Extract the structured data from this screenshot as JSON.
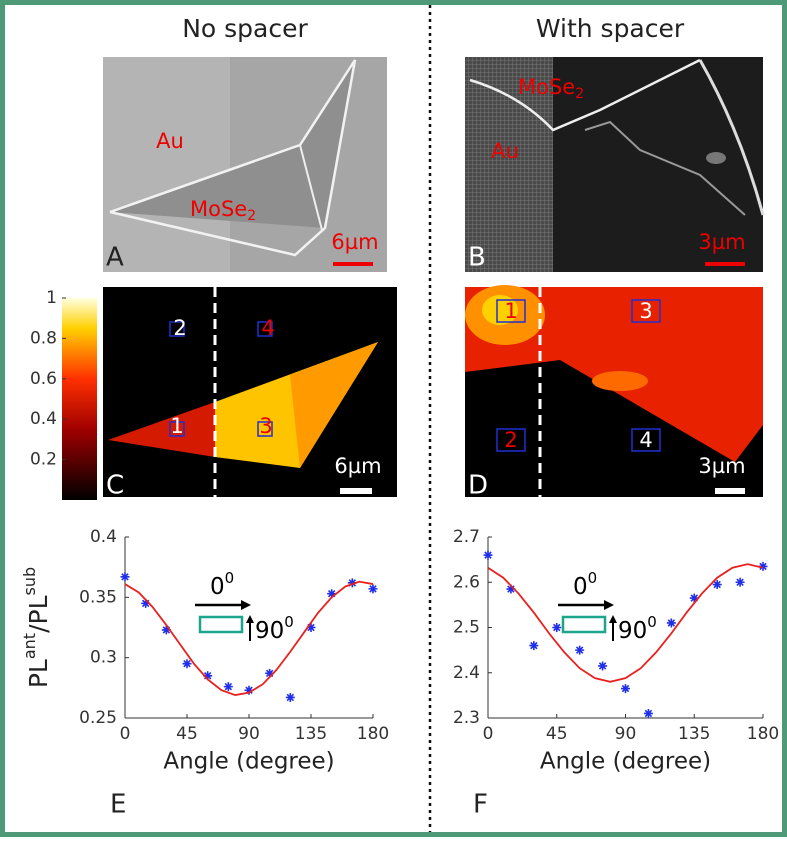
{
  "header": {
    "left": "No spacer",
    "right": "With spacer"
  },
  "images": [
    {
      "label": "A",
      "texts": [
        {
          "text": "Au"
        },
        {
          "text": "MoSe",
          "sub": "2"
        }
      ],
      "scale": "6µm"
    },
    {
      "label": "B",
      "texts": [
        {
          "text": "MoSe",
          "sub": "2"
        },
        {
          "text": "Au"
        }
      ],
      "scale": "3µm"
    }
  ],
  "heatmaps": [
    {
      "label": "C",
      "scale": "6µm",
      "regions": [
        "1",
        "2",
        "3",
        "4"
      ]
    },
    {
      "label": "D",
      "scale": "3µm",
      "regions": [
        "1",
        "2",
        "3",
        "4"
      ]
    }
  ],
  "colorbar": {
    "lim": [
      0,
      1
    ],
    "ticks": [
      0.2,
      0.4,
      0.6,
      0.8,
      1
    ]
  },
  "chart_data": [
    {
      "type": "scatter",
      "label": "E",
      "xlabel": "Angle (degree)",
      "ylabel": [
        "PL",
        "ant",
        "/PL",
        "sub"
      ],
      "arrows": {
        "horizontal": [
          "0",
          "0"
        ],
        "vertical": [
          "90",
          "0"
        ]
      },
      "xlim": [
        0,
        180
      ],
      "xticks": [
        0,
        45,
        90,
        135,
        180
      ],
      "ylim": [
        0.25,
        0.4
      ],
      "yticks": [
        0.25,
        0.3,
        0.35,
        0.4
      ],
      "series": [
        {
          "color": "#1f2ee8",
          "x": [
            0,
            15,
            30,
            45,
            60,
            75,
            90,
            105,
            120,
            135,
            150,
            165,
            180
          ],
          "values": [
            0.367,
            0.345,
            0.323,
            0.295,
            0.285,
            0.276,
            0.273,
            0.287,
            0.267,
            0.325,
            0.353,
            0.362,
            0.357
          ]
        },
        {
          "color": "#e8201e",
          "x": [
            0,
            10,
            20,
            30,
            40,
            50,
            60,
            70,
            80,
            90,
            100,
            110,
            120,
            130,
            140,
            150,
            160,
            170,
            180
          ],
          "values": [
            0.361,
            0.354,
            0.342,
            0.327,
            0.311,
            0.295,
            0.282,
            0.273,
            0.269,
            0.271,
            0.278,
            0.29,
            0.305,
            0.321,
            0.337,
            0.35,
            0.359,
            0.363,
            0.361
          ]
        }
      ]
    },
    {
      "type": "scatter",
      "label": "F",
      "xlabel": "Angle (degree)",
      "arrows": {
        "horizontal": [
          "0",
          "0"
        ],
        "vertical": [
          "90",
          "0"
        ]
      },
      "xlim": [
        0,
        180
      ],
      "xticks": [
        0,
        45,
        90,
        135,
        180
      ],
      "ylim": [
        2.3,
        2.7
      ],
      "yticks": [
        2.3,
        2.4,
        2.5,
        2.6,
        2.7
      ],
      "series": [
        {
          "color": "#1f2ee8",
          "x": [
            0,
            15,
            30,
            45,
            60,
            75,
            90,
            105,
            120,
            135,
            150,
            165,
            180
          ],
          "values": [
            2.66,
            2.585,
            2.46,
            2.5,
            2.45,
            2.415,
            2.365,
            2.31,
            2.51,
            2.565,
            2.595,
            2.6,
            2.635
          ]
        },
        {
          "color": "#e8201e",
          "x": [
            0,
            10,
            20,
            30,
            40,
            50,
            60,
            70,
            80,
            90,
            100,
            110,
            120,
            130,
            140,
            150,
            160,
            170,
            180
          ],
          "values": [
            2.632,
            2.61,
            2.575,
            2.533,
            2.487,
            2.445,
            2.41,
            2.388,
            2.38,
            2.388,
            2.41,
            2.445,
            2.487,
            2.533,
            2.575,
            2.61,
            2.632,
            2.64,
            2.632
          ]
        }
      ]
    }
  ]
}
